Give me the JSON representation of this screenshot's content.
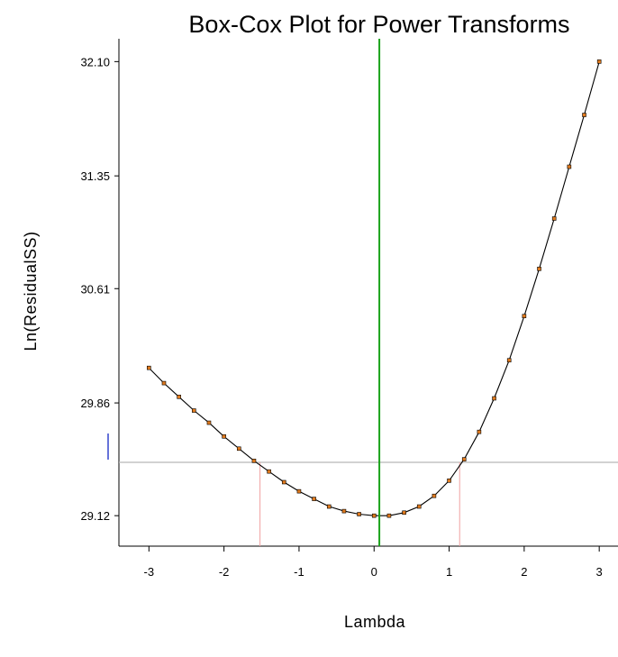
{
  "chart_data": {
    "type": "line",
    "title": "Box-Cox Plot for Power Transforms",
    "xlabel": "Lambda",
    "ylabel": "Ln(ResidualSS)",
    "xlim": [
      -3.4,
      3.25
    ],
    "ylim": [
      28.92,
      32.25
    ],
    "x_ticks": [
      -3,
      -2,
      -1,
      0,
      1,
      2,
      3
    ],
    "x_tick_labels": [
      "-3",
      "-2",
      "-1",
      "0",
      "1",
      "2",
      "3"
    ],
    "y_ticks": [
      29.12,
      29.86,
      30.61,
      31.35,
      32.1
    ],
    "y_tick_labels": [
      "29.12",
      "29.86",
      "30.61",
      "31.35",
      "32.10"
    ],
    "series": [
      {
        "x": [
          -3.0,
          -2.8,
          -2.6,
          -2.4,
          -2.2,
          -2.0,
          -1.8,
          -1.6,
          -1.4,
          -1.2,
          -1.0,
          -0.8,
          -0.6,
          -0.4,
          -0.2,
          0.0,
          0.2,
          0.4,
          0.6,
          0.8,
          1.0,
          1.2,
          1.4,
          1.6,
          1.8,
          2.0,
          2.2,
          2.4,
          2.6,
          2.8,
          3.0
        ],
        "y": [
          30.09,
          29.99,
          29.9,
          29.81,
          29.73,
          29.64,
          29.56,
          29.48,
          29.41,
          29.34,
          29.28,
          29.23,
          29.18,
          29.15,
          29.13,
          29.12,
          29.12,
          29.14,
          29.18,
          29.25,
          29.35,
          29.49,
          29.67,
          29.89,
          30.14,
          30.43,
          30.74,
          31.07,
          31.41,
          31.75,
          32.1
        ]
      }
    ],
    "reference_lines": {
      "best_lambda": 0.07,
      "ci_low": -1.52,
      "ci_high": 1.14,
      "ci_level_y": 29.47
    },
    "colors": {
      "curve": "#000000",
      "points": "#e07a1e",
      "best_lambda_line": "#1aa31a",
      "ci_vertical_lines": "#f0a0a0",
      "ci_horizontal_line": "#b8b8b8",
      "side_marker": "#3344cc"
    },
    "grid": false,
    "legend": "none"
  }
}
